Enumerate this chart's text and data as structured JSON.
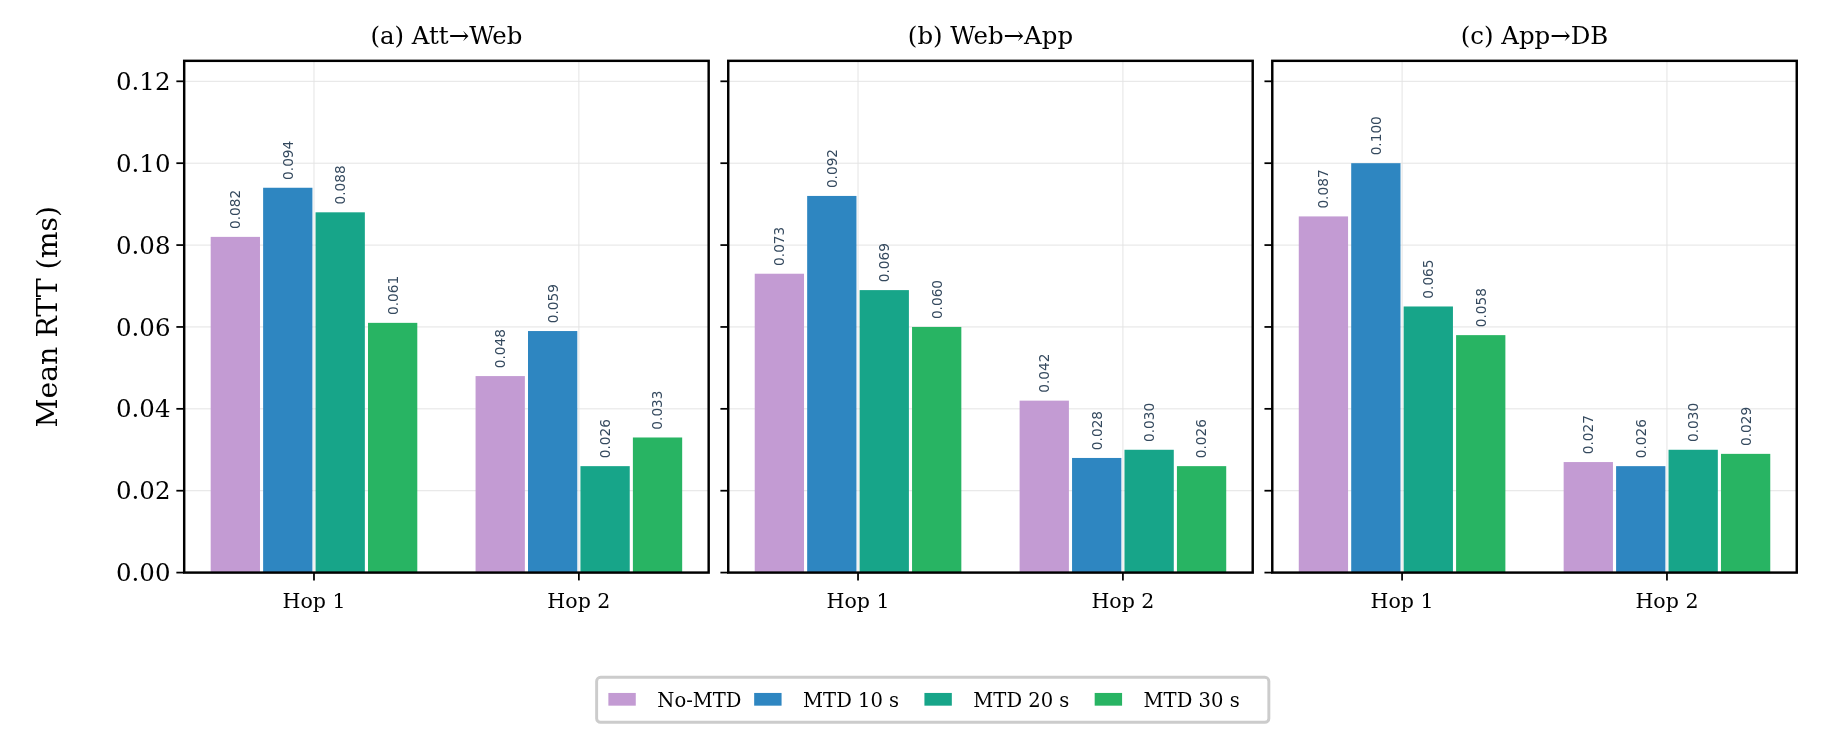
{
  "chart_data": [
    {
      "type": "bar",
      "title": "(a) Att→Web",
      "ylabel": "Mean RTT (ms)",
      "categories": [
        "Hop 1",
        "Hop 2"
      ],
      "ylim": [
        0,
        0.125
      ],
      "yticks": [
        {
          "value": 0,
          "label": "0.00"
        },
        {
          "value": 0.02,
          "label": "0.02"
        },
        {
          "value": 0.04,
          "label": "0.04"
        },
        {
          "value": 0.06,
          "label": "0.06"
        },
        {
          "value": 0.08,
          "label": "0.08"
        },
        {
          "value": 0.1,
          "label": "0.10"
        },
        {
          "value": 0.12,
          "label": "0.12"
        }
      ],
      "grid": true,
      "series": [
        {
          "color": "#c39bd3",
          "values": [
            0.082,
            0.048
          ],
          "value_labels": [
            "0.082",
            "0.048"
          ]
        },
        {
          "color": "#2e86c1",
          "values": [
            0.094,
            0.059
          ],
          "value_labels": [
            "0.094",
            "0.059"
          ]
        },
        {
          "color": "#17a589",
          "values": [
            0.088,
            0.026
          ],
          "value_labels": [
            "0.088",
            "0.026"
          ]
        },
        {
          "color": "#28b463",
          "values": [
            0.061,
            0.033
          ],
          "value_labels": [
            "0.061",
            "0.033"
          ]
        }
      ]
    },
    {
      "type": "bar",
      "title": "(b) Web→App",
      "categories": [
        "Hop 1",
        "Hop 2"
      ],
      "ylim": [
        0,
        0.125
      ],
      "yticks": [
        0,
        0.02,
        0.04,
        0.06,
        0.08,
        0.1,
        0.12
      ],
      "tick_labels": "x",
      "grid": true,
      "legend": "bottom",
      "series": [
        {
          "name": "No-MTD",
          "color": "#c39bd3",
          "values": [
            0.073,
            0.042
          ],
          "value_labels": [
            "0.073",
            "0.042"
          ]
        },
        {
          "name": "MTD 10 s",
          "color": "#2e86c1",
          "values": [
            0.092,
            0.028
          ],
          "value_labels": [
            "0.092",
            "0.028"
          ]
        },
        {
          "name": "MTD 20 s",
          "color": "#17a589",
          "values": [
            0.069,
            0.03
          ],
          "value_labels": [
            "0.069",
            "0.030"
          ]
        },
        {
          "name": "MTD 30 s",
          "color": "#28b463",
          "values": [
            0.06,
            0.026
          ],
          "value_labels": [
            "0.060",
            "0.026"
          ]
        }
      ]
    },
    {
      "type": "bar",
      "title": "(c) App→DB",
      "categories": [
        "Hop 1",
        "Hop 2"
      ],
      "ylim": [
        0,
        0.125
      ],
      "yticks": [
        0,
        0.02,
        0.04,
        0.06,
        0.08,
        0.1,
        0.12
      ],
      "tick_labels": "x",
      "grid": true,
      "series": [
        {
          "color": "#c39bd3",
          "values": [
            0.087,
            0.027
          ],
          "value_labels": [
            "0.087",
            "0.027"
          ]
        },
        {
          "color": "#2e86c1",
          "values": [
            0.1,
            0.026
          ],
          "value_labels": [
            "0.100",
            "0.026"
          ]
        },
        {
          "color": "#17a589",
          "values": [
            0.065,
            0.03
          ],
          "value_labels": [
            "0.065",
            "0.030"
          ]
        },
        {
          "color": "#28b463",
          "values": [
            0.058,
            0.029
          ],
          "value_labels": [
            "0.058",
            "0.029"
          ]
        }
      ]
    }
  ]
}
